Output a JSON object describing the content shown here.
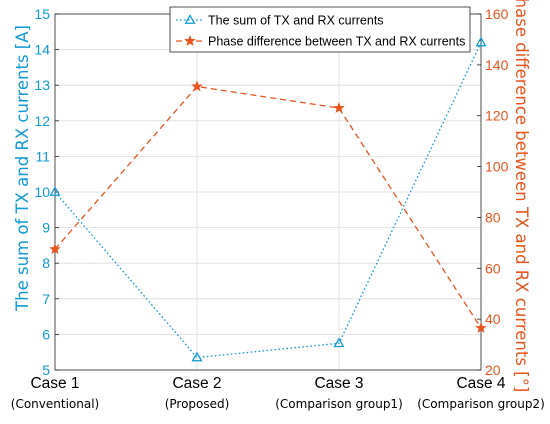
{
  "chart_data": {
    "type": "line",
    "categories": [
      {
        "main": "Case 1",
        "sub": "(Conventional)"
      },
      {
        "main": "Case 2",
        "sub": "(Proposed)"
      },
      {
        "main": "Case 3",
        "sub": "(Comparison group1)"
      },
      {
        "main": "Case 4",
        "sub": "(Comparison group2)"
      }
    ],
    "series": [
      {
        "name": "The sum of TX and RX currents",
        "axis": "left",
        "marker": "triangle",
        "line_style": "dotted",
        "color": "#0e9bd6",
        "values": [
          10.0,
          5.35,
          5.75,
          14.2
        ]
      },
      {
        "name": "Phase difference between TX and RX currents",
        "axis": "right",
        "marker": "star",
        "line_style": "dashed",
        "color": "#e8541c",
        "values": [
          67.5,
          131.5,
          123,
          36.5
        ]
      }
    ],
    "y_left": {
      "label": "The sum of TX and RX currents [A]",
      "ylim": [
        5,
        15
      ],
      "ticks": [
        "5",
        "6",
        "7",
        "8",
        "9",
        "10",
        "11",
        "12",
        "13",
        "14",
        "15"
      ],
      "color": "#0e9bd6"
    },
    "y_right": {
      "label": "Phase difference between TX and RX currents [°]",
      "ylim": [
        20,
        160
      ],
      "ticks": [
        "20",
        "40",
        "60",
        "80",
        "100",
        "120",
        "140",
        "160"
      ],
      "color": "#e8541c"
    },
    "grid": true,
    "legend_position": "top-center"
  }
}
